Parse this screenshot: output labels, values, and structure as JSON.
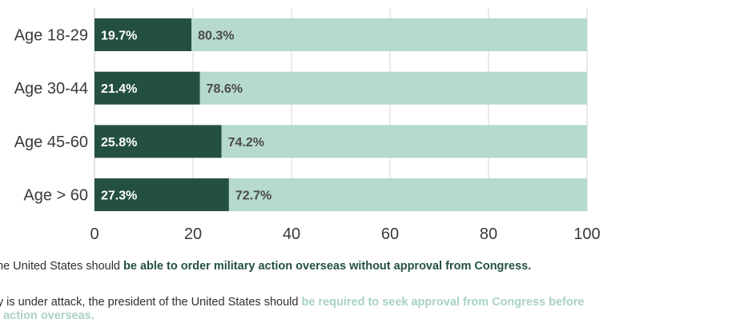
{
  "chart_data": {
    "type": "bar",
    "orientation": "horizontal",
    "stacked": true,
    "categories": [
      "Age 18-29",
      "Age 30-44",
      "Age 45-60",
      "Age > 60"
    ],
    "series": [
      {
        "values": [
          19.7,
          21.4,
          25.8,
          27.3
        ],
        "labels": [
          "19.7%",
          "21.4%",
          "25.8%",
          "27.3%"
        ],
        "color": "#24503f"
      },
      {
        "values": [
          80.3,
          78.6,
          74.2,
          72.7
        ],
        "labels": [
          "80.3%",
          "78.6%",
          "74.2%",
          "72.7%"
        ],
        "color": "#b6d9d0"
      }
    ],
    "xlim": [
      0,
      100
    ],
    "xticks": [
      0,
      20,
      40,
      60,
      80,
      100
    ],
    "xtick_labels": [
      "0",
      "20",
      "40",
      "60",
      "80",
      "100"
    ],
    "grid": true
  },
  "legend": {
    "line1": {
      "prefix": "the United States should ",
      "highlight": "be able to order military action overseas without approval from Congress."
    },
    "line2": {
      "prefix": "ry is under attack, the president of the United States should ",
      "highlight": "be required to seek approval from Congress before"
    },
    "line3": {
      "highlight": "y action overseas."
    }
  }
}
